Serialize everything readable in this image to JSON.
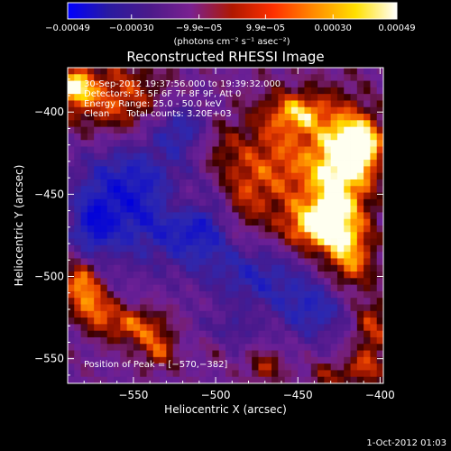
{
  "chart_data": {
    "type": "heatmap",
    "title": "Reconstructed RHESSI Image",
    "xlabel": "Heliocentric X (arcsec)",
    "ylabel": "Heliocentric Y (arcsec)",
    "xlim": [
      -590,
      -398
    ],
    "ylim": [
      -565,
      -373
    ],
    "xticks": [
      -550,
      -500,
      -450,
      -400
    ],
    "xtick_labels": [
      "−550",
      "−500",
      "−450",
      "−400"
    ],
    "yticks": [
      -400,
      -450,
      -500,
      -550
    ],
    "ytick_labels": [
      "−400",
      "−450",
      "−500",
      "−550"
    ],
    "colorbar": {
      "min": -0.00049,
      "max": 0.00049,
      "ticks": [
        -0.00049,
        -0.0003,
        -9.9e-05,
        9.9e-05,
        0.0003,
        0.00049
      ],
      "tick_labels": [
        "−0.00049",
        "−0.00030",
        "−9.9e−05",
        "9.9e−05",
        "0.00030",
        "0.00049"
      ],
      "unit_label": "(photons cm⁻² s⁻¹ asec⁻²)",
      "colors": [
        "#0000ff",
        "#2a1aa0",
        "#4c1a8a",
        "#7a2090",
        "#b01800",
        "#ff3000",
        "#ff8c00",
        "#ffe000",
        "#ffffff"
      ]
    },
    "info_lines": [
      "30-Sep-2012 19:37:56.000 to 19:39:32.000",
      "Detectors: 3F 5F 6F 7F 8F 9F, Att 0",
      "Energy Range: 25.0 - 50.0 keV",
      "Clean      Total counts: 3.20E+03"
    ],
    "peak_label": "Position of Peak = [−570,−382]",
    "peak_position": [
      -570,
      -382
    ],
    "bright_regions": [
      {
        "x": -425,
        "y": -440,
        "sx": 14,
        "sy": 30,
        "v": 1.0
      },
      {
        "x": -412,
        "y": -420,
        "sx": 10,
        "sy": 12,
        "v": 0.95
      },
      {
        "x": -440,
        "y": -470,
        "sx": 14,
        "sy": 10,
        "v": 0.75
      },
      {
        "x": -462,
        "y": -430,
        "sx": 18,
        "sy": 26,
        "v": 0.6
      },
      {
        "x": -450,
        "y": -400,
        "sx": 12,
        "sy": 8,
        "v": 0.6
      },
      {
        "x": -418,
        "y": -490,
        "sx": 10,
        "sy": 14,
        "v": 0.6
      },
      {
        "x": -500,
        "y": -420,
        "sx": 10,
        "sy": 14,
        "v": 0.35
      },
      {
        "x": -485,
        "y": -455,
        "sx": 10,
        "sy": 18,
        "v": 0.45
      },
      {
        "x": -520,
        "y": -455,
        "sx": 10,
        "sy": 8,
        "v": 0.45
      },
      {
        "x": -560,
        "y": -395,
        "sx": 22,
        "sy": 18,
        "v": 0.7
      },
      {
        "x": -586,
        "y": -385,
        "sx": 8,
        "sy": 8,
        "v": 0.85
      },
      {
        "x": -582,
        "y": -505,
        "sx": 8,
        "sy": 10,
        "v": 0.85
      },
      {
        "x": -572,
        "y": -520,
        "sx": 8,
        "sy": 8,
        "v": 0.6
      },
      {
        "x": -550,
        "y": -530,
        "sx": 14,
        "sy": 8,
        "v": 0.65
      },
      {
        "x": -535,
        "y": -545,
        "sx": 8,
        "sy": 8,
        "v": 0.55
      },
      {
        "x": -500,
        "y": -540,
        "sx": 7,
        "sy": 7,
        "v": 0.4
      },
      {
        "x": -470,
        "y": -555,
        "sx": 8,
        "sy": 7,
        "v": 0.45
      },
      {
        "x": -405,
        "y": -530,
        "sx": 8,
        "sy": 12,
        "v": 0.55
      },
      {
        "x": -430,
        "y": -560,
        "sx": 10,
        "sy": 6,
        "v": 0.4
      },
      {
        "x": -408,
        "y": -555,
        "sx": 8,
        "sy": 8,
        "v": 0.5
      }
    ],
    "dark_regions": [
      {
        "x": -555,
        "y": -450,
        "sx": 22,
        "sy": 28,
        "v": 0.8
      },
      {
        "x": -510,
        "y": -470,
        "sx": 18,
        "sy": 18,
        "v": 0.7
      },
      {
        "x": -520,
        "y": -410,
        "sx": 14,
        "sy": 12,
        "v": 0.6
      },
      {
        "x": -475,
        "y": -500,
        "sx": 20,
        "sy": 14,
        "v": 0.55
      },
      {
        "x": -440,
        "y": -520,
        "sx": 16,
        "sy": 14,
        "v": 0.6
      },
      {
        "x": -575,
        "y": -470,
        "sx": 8,
        "sy": 12,
        "v": 0.5
      },
      {
        "x": -495,
        "y": -535,
        "sx": 12,
        "sy": 8,
        "v": 0.5
      }
    ]
  },
  "footer": {
    "timestamp": "1-Oct-2012 01:03"
  }
}
